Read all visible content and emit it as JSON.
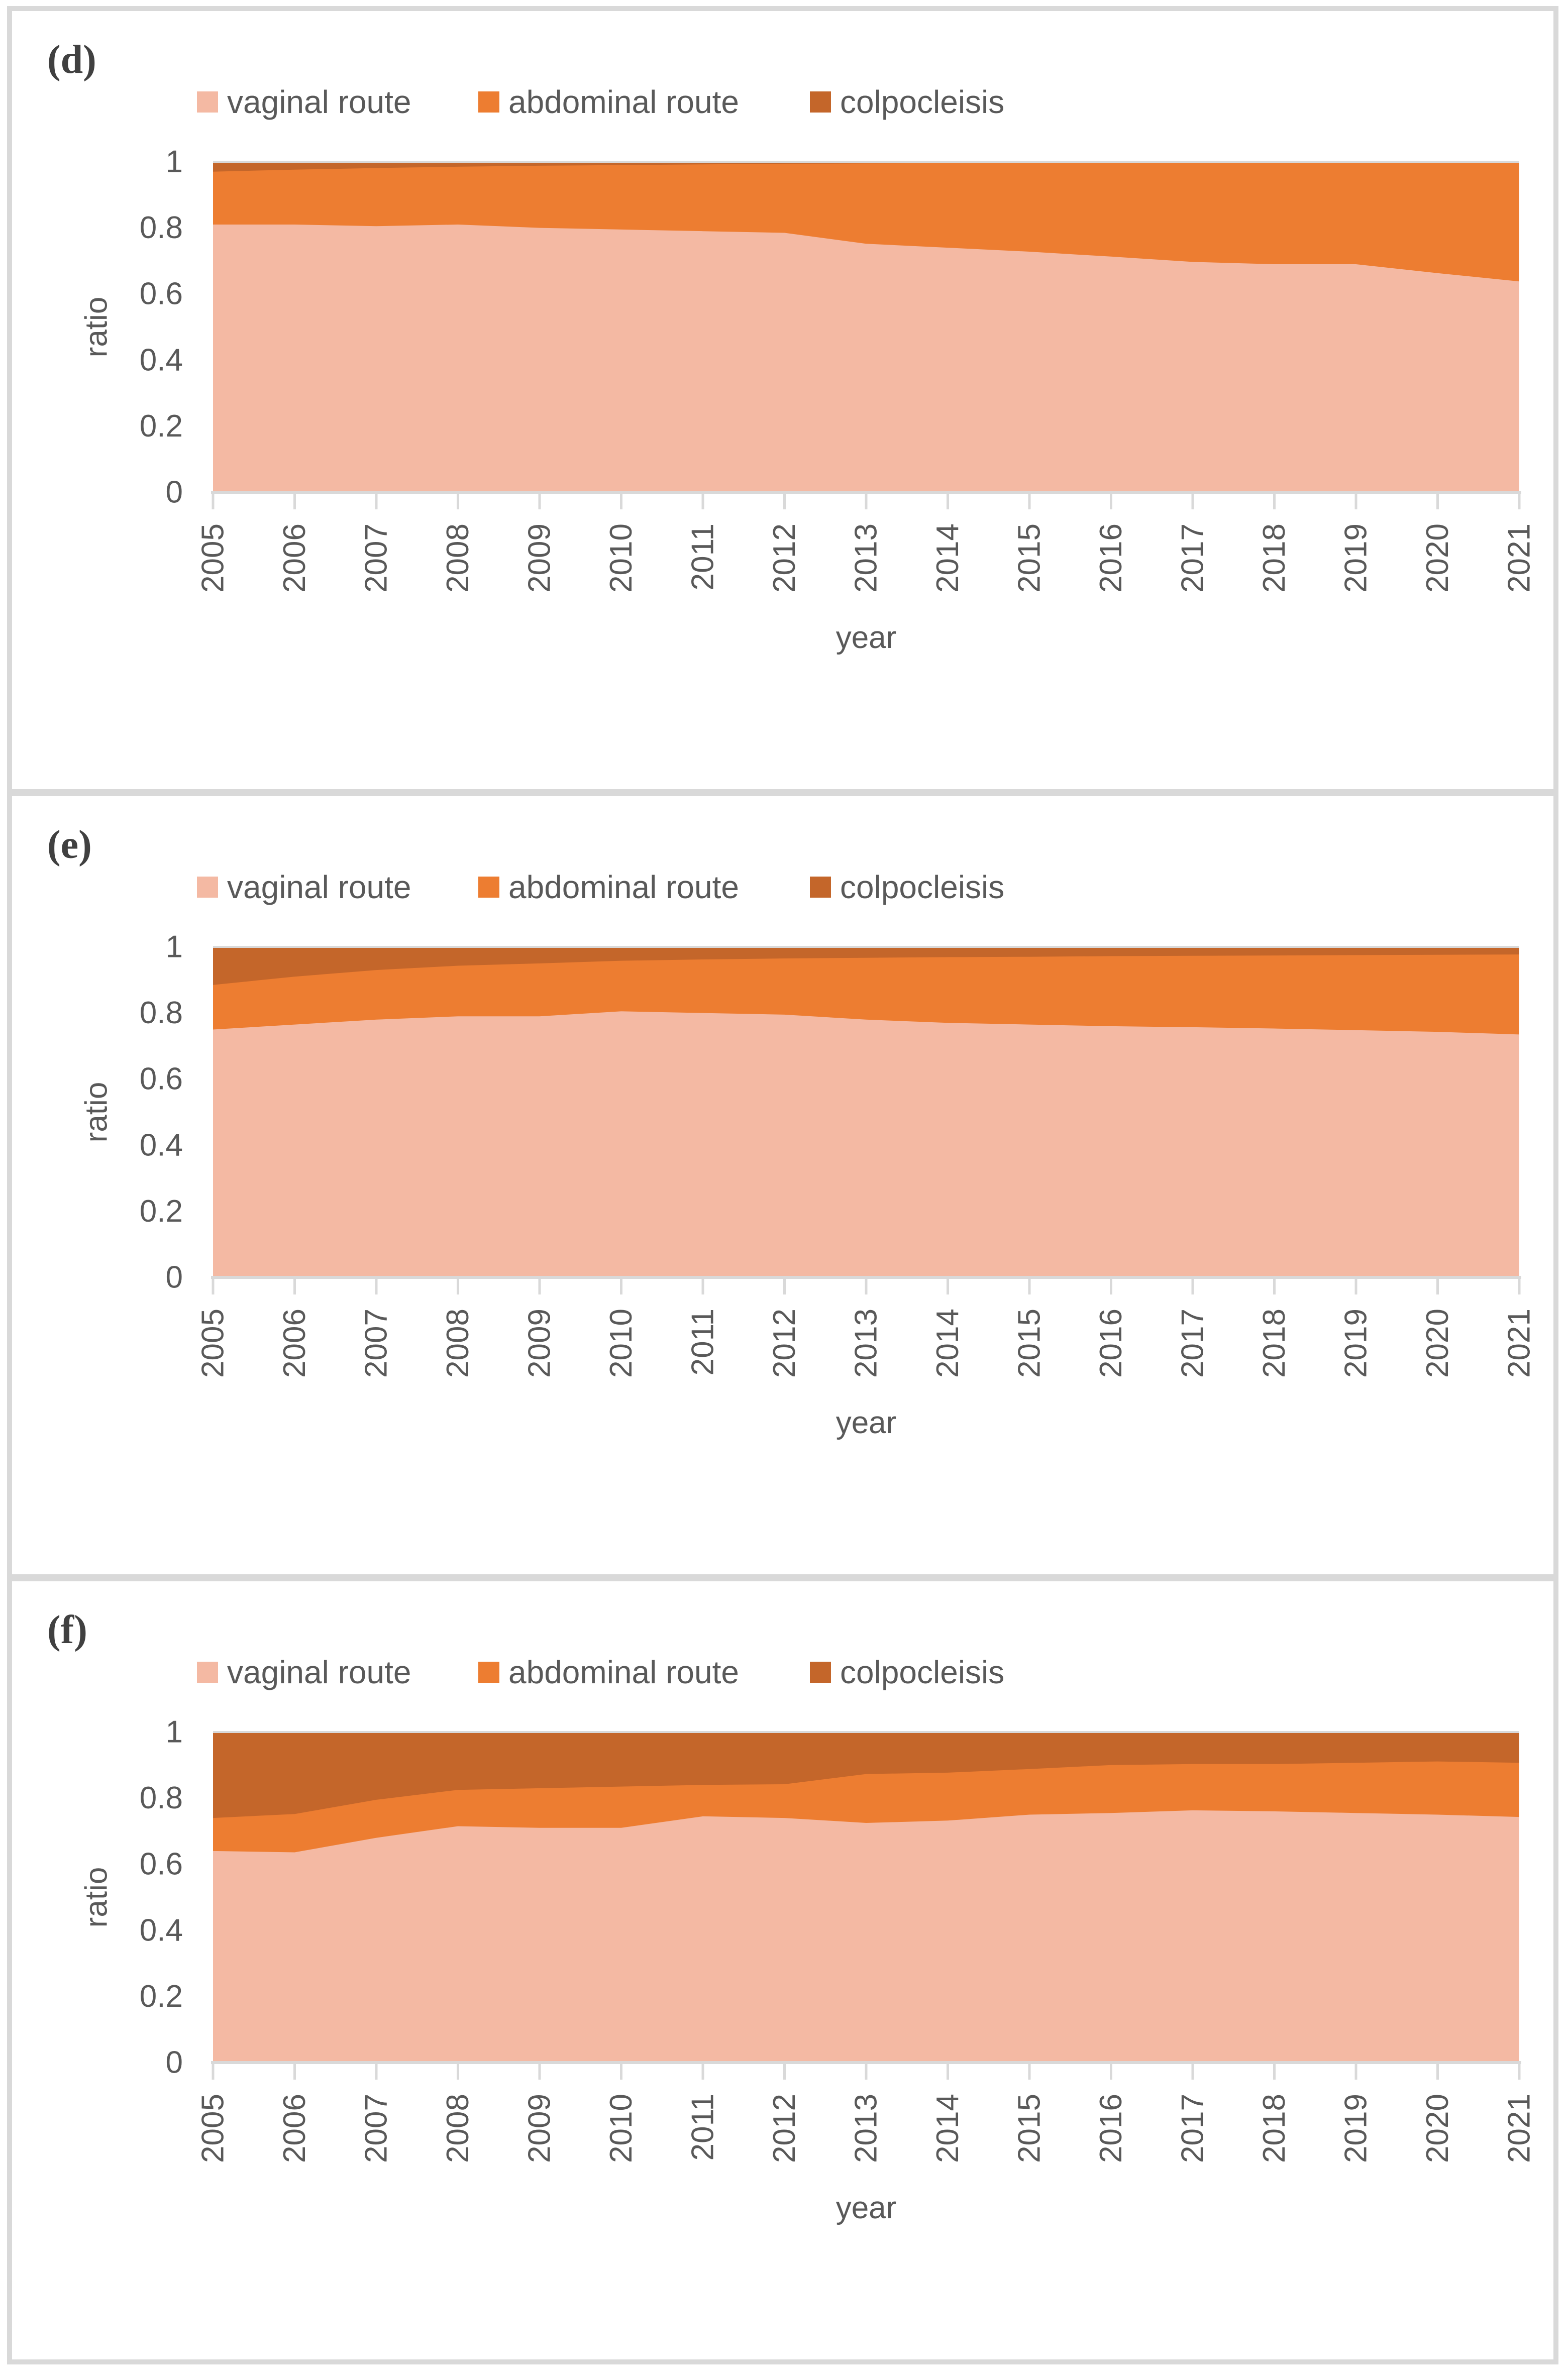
{
  "figure": {
    "description": "Three normalized stacked area charts of surgical route ratios by year",
    "panels": [
      {
        "letter": "(d)"
      },
      {
        "letter": "(e)"
      },
      {
        "letter": "(f)"
      }
    ]
  },
  "colors": {
    "vaginal": "#F4B9A3",
    "abdominal": "#ED7D31",
    "colpocleisis": "#C4662A",
    "text": "#595959",
    "panel_letter": "#404040",
    "axis": "#D9D9D9",
    "frame": "#D9D9D9",
    "panel_background": "#FFFFFF"
  },
  "legend": {
    "items": [
      {
        "label": "vaginal route",
        "color_key": "vaginal"
      },
      {
        "label": "abdominal route",
        "color_key": "abdominal"
      },
      {
        "label": "colpocleisis",
        "color_key": "colpocleisis"
      }
    ]
  },
  "axis": {
    "xlabel": "year",
    "ylabel": "ratio",
    "y_tick_values": [
      1,
      0.8,
      0.6,
      0.4,
      0.2,
      0
    ],
    "y_tick_labels": [
      "1",
      "0.8",
      "0.6",
      "0.4",
      "0.2",
      "0"
    ],
    "ylim": [
      0,
      1
    ]
  },
  "chart_data": [
    {
      "panel": "d",
      "type": "area",
      "stacked": true,
      "normalized": true,
      "title": "",
      "xlabel": "year",
      "ylabel": "ratio",
      "ylim": [
        0,
        1
      ],
      "grid": "top-line-only",
      "legend_position": "top",
      "categories": [
        "2005",
        "2006",
        "2007",
        "2008",
        "2009",
        "2010",
        "2011",
        "2012",
        "2013",
        "2014",
        "2015",
        "2016",
        "2017",
        "2018",
        "2019",
        "2020",
        "2021"
      ],
      "series": [
        {
          "name": "vaginal route",
          "color_key": "vaginal",
          "color": "#F4B9A3",
          "values": [
            0.81,
            0.81,
            0.805,
            0.81,
            0.8,
            0.795,
            0.79,
            0.785,
            0.752,
            0.74,
            0.728,
            0.713,
            0.697,
            0.69,
            0.69,
            0.663,
            0.638
          ]
        },
        {
          "name": "abdominal route",
          "color_key": "abdominal",
          "color": "#ED7D31",
          "values": [
            0.16,
            0.166,
            0.176,
            0.175,
            0.188,
            0.195,
            0.202,
            0.209,
            0.243,
            0.256,
            0.268,
            0.284,
            0.3,
            0.307,
            0.307,
            0.334,
            0.359
          ]
        },
        {
          "name": "colpocleisis",
          "color_key": "colpocleisis",
          "color": "#C4662A",
          "values": [
            0.03,
            0.024,
            0.019,
            0.015,
            0.012,
            0.01,
            0.008,
            0.006,
            0.005,
            0.004,
            0.004,
            0.003,
            0.003,
            0.003,
            0.003,
            0.003,
            0.003
          ]
        }
      ]
    },
    {
      "panel": "e",
      "type": "area",
      "stacked": true,
      "normalized": true,
      "title": "",
      "xlabel": "year",
      "ylabel": "ratio",
      "ylim": [
        0,
        1
      ],
      "grid": "top-line-only",
      "legend_position": "top",
      "categories": [
        "2005",
        "2006",
        "2007",
        "2008",
        "2009",
        "2010",
        "2011",
        "2012",
        "2013",
        "2014",
        "2015",
        "2016",
        "2017",
        "2018",
        "2019",
        "2020",
        "2021"
      ],
      "series": [
        {
          "name": "vaginal route",
          "color_key": "vaginal",
          "color": "#F4B9A3",
          "values": [
            0.75,
            0.765,
            0.78,
            0.79,
            0.79,
            0.805,
            0.8,
            0.795,
            0.78,
            0.77,
            0.765,
            0.76,
            0.757,
            0.753,
            0.748,
            0.743,
            0.735
          ]
        },
        {
          "name": "abdominal route",
          "color_key": "abdominal",
          "color": "#ED7D31",
          "values": [
            0.135,
            0.145,
            0.15,
            0.153,
            0.16,
            0.153,
            0.162,
            0.17,
            0.187,
            0.199,
            0.205,
            0.212,
            0.216,
            0.221,
            0.227,
            0.233,
            0.242
          ]
        },
        {
          "name": "colpocleisis",
          "color_key": "colpocleisis",
          "color": "#C4662A",
          "values": [
            0.115,
            0.09,
            0.07,
            0.057,
            0.05,
            0.042,
            0.038,
            0.035,
            0.033,
            0.031,
            0.03,
            0.028,
            0.027,
            0.026,
            0.025,
            0.024,
            0.023
          ]
        }
      ]
    },
    {
      "panel": "f",
      "type": "area",
      "stacked": true,
      "normalized": true,
      "title": "",
      "xlabel": "year",
      "ylabel": "ratio",
      "ylim": [
        0,
        1
      ],
      "grid": "top-line-only",
      "legend_position": "top",
      "categories": [
        "2005",
        "2006",
        "2007",
        "2008",
        "2009",
        "2010",
        "2011",
        "2012",
        "2013",
        "2014",
        "2015",
        "2016",
        "2017",
        "2018",
        "2019",
        "2020",
        "2021"
      ],
      "series": [
        {
          "name": "vaginal route",
          "color_key": "vaginal",
          "color": "#F4B9A3",
          "values": [
            0.64,
            0.636,
            0.68,
            0.715,
            0.71,
            0.71,
            0.745,
            0.74,
            0.725,
            0.732,
            0.75,
            0.755,
            0.763,
            0.76,
            0.755,
            0.75,
            0.743
          ]
        },
        {
          "name": "abdominal route",
          "color_key": "abdominal",
          "color": "#ED7D31",
          "values": [
            0.1,
            0.116,
            0.115,
            0.11,
            0.12,
            0.125,
            0.095,
            0.102,
            0.148,
            0.145,
            0.138,
            0.145,
            0.14,
            0.143,
            0.152,
            0.161,
            0.164
          ]
        },
        {
          "name": "colpocleisis",
          "color_key": "colpocleisis",
          "color": "#C4662A",
          "values": [
            0.26,
            0.248,
            0.205,
            0.175,
            0.17,
            0.165,
            0.16,
            0.158,
            0.127,
            0.123,
            0.112,
            0.1,
            0.097,
            0.097,
            0.093,
            0.089,
            0.093
          ]
        }
      ]
    }
  ]
}
